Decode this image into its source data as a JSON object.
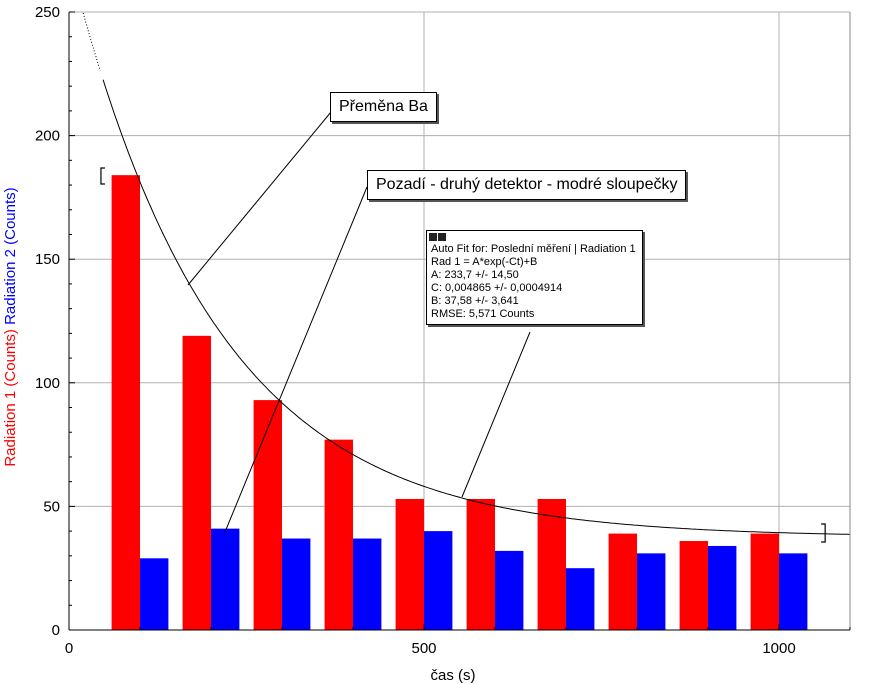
{
  "chart_data": {
    "type": "bar",
    "x_ticks": [
      0,
      500,
      1000
    ],
    "y_ticks": [
      0,
      50,
      100,
      150,
      200,
      250
    ],
    "xlabel": "čas (s)",
    "ylabel_1": "Radiation 1 (Counts)",
    "ylabel_2": "Radiation 2 (Counts)",
    "xlim": [
      0,
      1100
    ],
    "ylim": [
      0,
      250
    ],
    "grid": true,
    "x": [
      100,
      200,
      300,
      400,
      500,
      600,
      700,
      800,
      900,
      1000
    ],
    "series": [
      {
        "name": "Radiation 1",
        "color": "#ff0000",
        "values": [
          184,
          119,
          93,
          77,
          53,
          53,
          53,
          39,
          36,
          39
        ]
      },
      {
        "name": "Radiation 2",
        "color": "#0000ff",
        "values": [
          29,
          41,
          37,
          37,
          40,
          32,
          25,
          31,
          34,
          31
        ]
      }
    ],
    "fit_curve": {
      "A": 233.7,
      "C": 0.004865,
      "B": 37.58,
      "x_start": 20,
      "x_end": 1100,
      "fit_range": [
        45,
        1065
      ]
    },
    "annotations": {
      "decay": "Přeměna Ba",
      "background": "Pozadí - druhý detektor - modré sloupečky",
      "fit_lines": [
        "Auto Fit for: Poslední měření | Radiation 1",
        "Rad 1 = A*exp(-Ct)+B",
        "A: 233,7 +/- 14,50",
        "C: 0,004865 +/- 0,0004914",
        "B: 37,58 +/- 3,641",
        "RMSE: 5,571 Counts"
      ]
    }
  }
}
